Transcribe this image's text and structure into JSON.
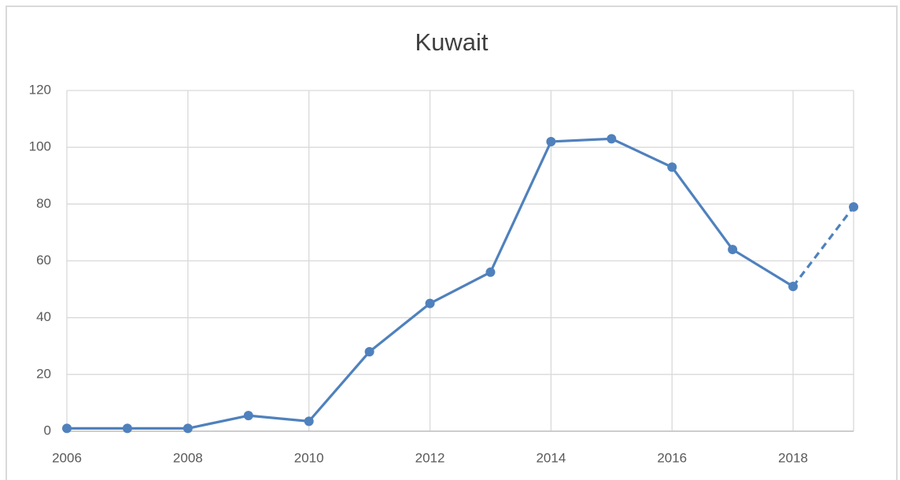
{
  "chart_data": {
    "type": "line",
    "title": "Kuwait",
    "x": [
      2006,
      2007,
      2008,
      2009,
      2010,
      2011,
      2012,
      2013,
      2014,
      2015,
      2016,
      2017,
      2018,
      2019
    ],
    "series": [
      {
        "color": "#4f81bd",
        "values": [
          1,
          1,
          1,
          5.5,
          3.5,
          28,
          45,
          56,
          102,
          103,
          93,
          64,
          51,
          79
        ],
        "dashed_segments": [
          12
        ]
      }
    ],
    "xlim": [
      2006,
      2019
    ],
    "xticks": [
      2006,
      2008,
      2010,
      2012,
      2014,
      2016,
      2018
    ],
    "ylim": [
      0,
      120
    ],
    "yticks": [
      0,
      20,
      40,
      60,
      80,
      100,
      120
    ],
    "grid": true
  }
}
